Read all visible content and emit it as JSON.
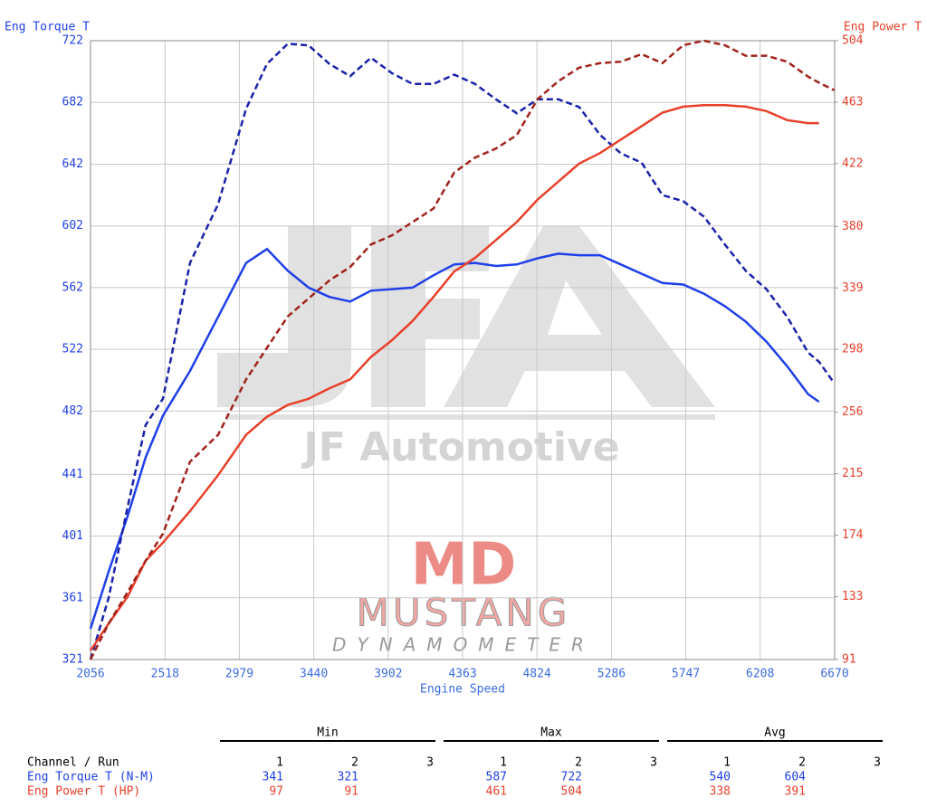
{
  "chart_data": {
    "type": "line",
    "ylabel": "Eng Torque T",
    "y2label": "Eng Power T",
    "xlabel": "Engine Speed",
    "annotations": [
      "JF Automotive",
      "MD",
      "MUSTANG",
      "DYNAMOMETER"
    ],
    "xlim": [
      2056,
      6670
    ],
    "xticks": [
      2056,
      2518,
      2979,
      3440,
      3902,
      4363,
      4824,
      5286,
      5747,
      6208,
      6670
    ],
    "ylim": [
      321,
      722
    ],
    "yticks": [
      321,
      361,
      401,
      441,
      482,
      522,
      562,
      602,
      642,
      682,
      722
    ],
    "y2lim": [
      91,
      504
    ],
    "y2ticks": [
      91,
      133,
      174,
      215,
      256,
      298,
      339,
      380,
      422,
      463,
      504
    ],
    "grid": true,
    "x": [
      2056,
      2168,
      2286,
      2398,
      2505,
      2673,
      2847,
      3021,
      3150,
      3279,
      3408,
      3537,
      3666,
      3795,
      3924,
      4053,
      4182,
      4311,
      4440,
      4570,
      4699,
      4828,
      4957,
      5086,
      5215,
      5344,
      5473,
      5602,
      5731,
      5860,
      5989,
      6118,
      6247,
      6376,
      6505,
      6573,
      6668
    ],
    "series": [
      {
        "color": "#1f3fe8",
        "dash": false,
        "axis": "y",
        "values": [
          341,
          378,
          414,
          452,
          479,
          508,
          543,
          578,
          587,
          573,
          562,
          556,
          553,
          560,
          561,
          562,
          570,
          577,
          578,
          576,
          577,
          581,
          584,
          583,
          583,
          577,
          571,
          565,
          564,
          558,
          550,
          540,
          527,
          511,
          493,
          488,
          null
        ]
      },
      {
        "color": "#1a23a8",
        "dash": true,
        "axis": "y",
        "values": [
          321,
          361,
          420,
          473,
          490,
          578,
          616,
          678,
          707,
          720,
          719,
          707,
          699,
          711,
          701,
          694,
          694,
          700,
          694,
          684,
          675,
          684,
          684,
          679,
          661,
          649,
          643,
          622,
          618,
          608,
          590,
          573,
          561,
          543,
          520,
          514,
          500
        ]
      },
      {
        "color": "#e8402a",
        "dash": false,
        "axis": "y2",
        "values": [
          97,
          115,
          133,
          157,
          169,
          190,
          214,
          241,
          253,
          261,
          265,
          272,
          278,
          293,
          304,
          317,
          333,
          350,
          359,
          371,
          383,
          398,
          410,
          422,
          429,
          438,
          447,
          456,
          460,
          461,
          461,
          460,
          457,
          451,
          449,
          449,
          null
        ]
      },
      {
        "color": "#a0231c",
        "dash": true,
        "axis": "y2",
        "values": [
          91,
          115,
          136,
          157,
          175,
          223,
          241,
          278,
          299,
          320,
          332,
          344,
          353,
          368,
          374,
          383,
          392,
          416,
          426,
          432,
          441,
          465,
          477,
          486,
          489,
          490,
          495,
          489,
          501,
          504,
          501,
          494,
          494,
          490,
          480,
          476,
          471
        ]
      }
    ]
  },
  "table": {
    "groups": [
      "Min",
      "Max",
      "Avg"
    ],
    "header": "Channel / Run",
    "runs": [
      1,
      2,
      3
    ],
    "rows": [
      {
        "label": "Eng Torque T (N-M)",
        "color": "#1f3fe8",
        "min": [
          341,
          321
        ],
        "max": [
          587,
          722
        ],
        "avg": [
          540,
          604
        ]
      },
      {
        "label": "Eng Power T (HP)",
        "color": "#e8402a",
        "min": [
          97,
          91
        ],
        "max": [
          461,
          504
        ],
        "avg": [
          338,
          391
        ]
      }
    ]
  }
}
